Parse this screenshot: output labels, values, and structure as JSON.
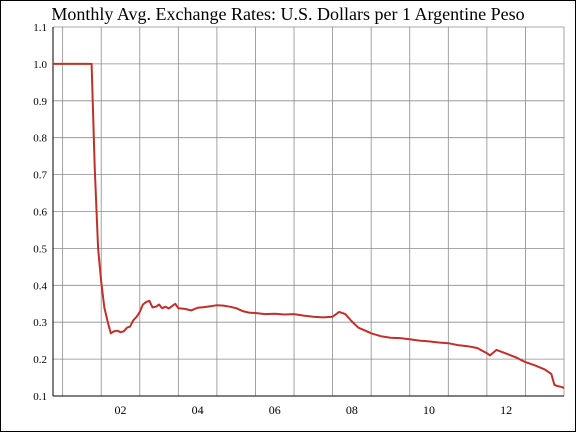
{
  "chart_data": {
    "type": "line",
    "title": "Monthly Avg. Exchange Rates: U.S. Dollars per 1 Argentine Peso",
    "xlabel": "",
    "ylabel": "",
    "xlim": [
      2000.75,
      2014.0
    ],
    "ylim": [
      0.1,
      1.1
    ],
    "grid": true,
    "colors": {
      "line": "#c0302b",
      "grid": "#8c8c8c",
      "axis": "#000000"
    },
    "x_ticks": [
      {
        "value": 2002,
        "label": "02"
      },
      {
        "value": 2004,
        "label": "04"
      },
      {
        "value": 2006,
        "label": "06"
      },
      {
        "value": 2008,
        "label": "08"
      },
      {
        "value": 2010,
        "label": "10"
      },
      {
        "value": 2012,
        "label": "12"
      }
    ],
    "x_grid": [
      2000.75,
      2001,
      2002,
      2003,
      2004,
      2005,
      2006,
      2007,
      2008,
      2009,
      2010,
      2011,
      2012,
      2013,
      2014
    ],
    "y_ticks": [
      {
        "value": 0.1,
        "label": "0.1"
      },
      {
        "value": 0.2,
        "label": "0.2"
      },
      {
        "value": 0.3,
        "label": "0.3"
      },
      {
        "value": 0.4,
        "label": "0.4"
      },
      {
        "value": 0.5,
        "label": "0.5"
      },
      {
        "value": 0.6,
        "label": "0.6"
      },
      {
        "value": 0.7,
        "label": "0.7"
      },
      {
        "value": 0.8,
        "label": "0.8"
      },
      {
        "value": 0.9,
        "label": "0.9"
      },
      {
        "value": 1.0,
        "label": "1.0"
      },
      {
        "value": 1.1,
        "label": "1.1"
      }
    ],
    "series": [
      {
        "x": [
          2000.75,
          2001.0,
          2001.25,
          2001.5,
          2001.75,
          2001.83,
          2001.92,
          2002.0,
          2002.08,
          2002.17,
          2002.25,
          2002.33,
          2002.42,
          2002.5,
          2002.58,
          2002.67,
          2002.75,
          2002.83,
          2002.92,
          2003.0,
          2003.08,
          2003.17,
          2003.25,
          2003.33,
          2003.42,
          2003.5,
          2003.58,
          2003.67,
          2003.75,
          2003.83,
          2003.92,
          2004.0,
          2004.17,
          2004.33,
          2004.5,
          2004.67,
          2004.83,
          2005.0,
          2005.17,
          2005.33,
          2005.5,
          2005.67,
          2005.83,
          2006.0,
          2006.25,
          2006.5,
          2006.75,
          2007.0,
          2007.25,
          2007.5,
          2007.75,
          2008.0,
          2008.17,
          2008.33,
          2008.5,
          2008.67,
          2008.83,
          2009.0,
          2009.25,
          2009.5,
          2009.75,
          2010.0,
          2010.25,
          2010.5,
          2010.75,
          2011.0,
          2011.25,
          2011.5,
          2011.75,
          2012.0,
          2012.08,
          2012.25,
          2012.5,
          2012.75,
          2013.0,
          2013.25,
          2013.5,
          2013.67,
          2013.75,
          2013.83,
          2013.92,
          2014.0
        ],
        "y": [
          1.0,
          1.0,
          1.0,
          1.0,
          1.0,
          0.72,
          0.5,
          0.41,
          0.34,
          0.3,
          0.27,
          0.275,
          0.277,
          0.273,
          0.275,
          0.285,
          0.288,
          0.305,
          0.315,
          0.328,
          0.348,
          0.355,
          0.358,
          0.34,
          0.342,
          0.348,
          0.338,
          0.342,
          0.337,
          0.343,
          0.35,
          0.338,
          0.336,
          0.332,
          0.339,
          0.341,
          0.343,
          0.346,
          0.345,
          0.342,
          0.338,
          0.33,
          0.326,
          0.325,
          0.322,
          0.323,
          0.321,
          0.322,
          0.318,
          0.315,
          0.313,
          0.315,
          0.328,
          0.322,
          0.302,
          0.285,
          0.278,
          0.27,
          0.262,
          0.258,
          0.257,
          0.254,
          0.25,
          0.248,
          0.245,
          0.243,
          0.238,
          0.235,
          0.23,
          0.216,
          0.21,
          0.225,
          0.215,
          0.205,
          0.192,
          0.183,
          0.172,
          0.16,
          0.13,
          0.127,
          0.125,
          0.122
        ]
      }
    ]
  }
}
